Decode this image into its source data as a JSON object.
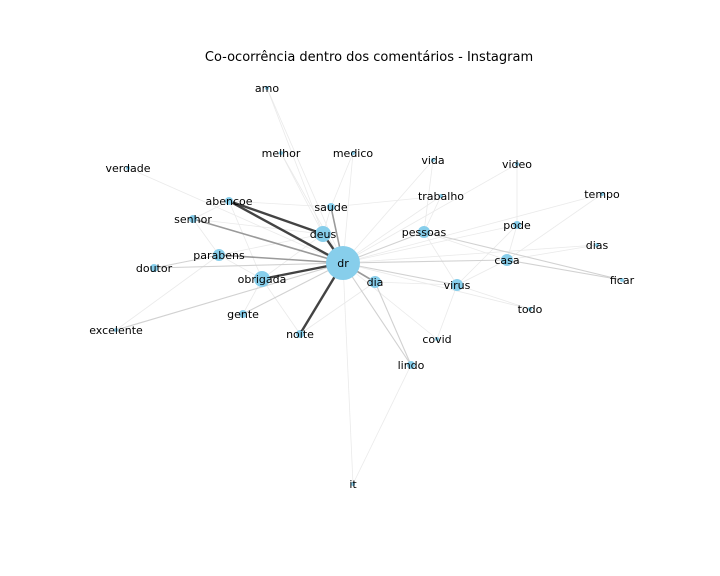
{
  "figure": {
    "title": "Co-ocorrência dentro dos comentários - Instagram"
  },
  "colors": {
    "node_fill": "#87ceeb",
    "edge_strong": "#222222",
    "edge_medium": "#888888",
    "edge_weak": "#cccccc",
    "edge_faint": "#e8e8e8"
  },
  "chart_data": {
    "type": "network",
    "hub": "dr",
    "nodes": [
      {
        "id": "dr",
        "degree_size": 5
      },
      {
        "id": "deus",
        "degree_size": 3
      },
      {
        "id": "obrigada",
        "degree_size": 3
      },
      {
        "id": "parabens",
        "degree_size": 2
      },
      {
        "id": "dia",
        "degree_size": 2
      },
      {
        "id": "casa",
        "degree_size": 2
      },
      {
        "id": "virus",
        "degree_size": 2
      },
      {
        "id": "pessoas",
        "degree_size": 2
      },
      {
        "id": "abencoe",
        "degree_size": 1
      },
      {
        "id": "saude",
        "degree_size": 1
      },
      {
        "id": "senhor",
        "degree_size": 1
      },
      {
        "id": "doutor",
        "degree_size": 1
      },
      {
        "id": "pode",
        "degree_size": 1
      },
      {
        "id": "gente",
        "degree_size": 1
      },
      {
        "id": "noite",
        "degree_size": 1
      },
      {
        "id": "lindo",
        "degree_size": 1
      },
      {
        "id": "amo",
        "degree_size": 0
      },
      {
        "id": "melhor",
        "degree_size": 0
      },
      {
        "id": "medico",
        "degree_size": 0
      },
      {
        "id": "vida",
        "degree_size": 0
      },
      {
        "id": "video",
        "degree_size": 0
      },
      {
        "id": "verdade",
        "degree_size": 0
      },
      {
        "id": "trabalho",
        "degree_size": 0
      },
      {
        "id": "tempo",
        "degree_size": 0
      },
      {
        "id": "dias",
        "degree_size": 0
      },
      {
        "id": "ficar",
        "degree_size": 0
      },
      {
        "id": "todo",
        "degree_size": 0
      },
      {
        "id": "covid",
        "degree_size": 0
      },
      {
        "id": "excelente",
        "degree_size": 0
      },
      {
        "id": "it",
        "degree_size": 0
      }
    ],
    "edges": [
      {
        "source": "dr",
        "target": "abencoe",
        "weight": 4
      },
      {
        "source": "dr",
        "target": "deus",
        "weight": 4
      },
      {
        "source": "dr",
        "target": "obrigada",
        "weight": 4
      },
      {
        "source": "dr",
        "target": "noite",
        "weight": 4
      },
      {
        "source": "abencoe",
        "target": "deus",
        "weight": 4
      },
      {
        "source": "dr",
        "target": "parabens",
        "weight": 3
      },
      {
        "source": "dr",
        "target": "dia",
        "weight": 3
      },
      {
        "source": "dr",
        "target": "senhor",
        "weight": 3
      },
      {
        "source": "dr",
        "target": "saude",
        "weight": 3
      },
      {
        "source": "dr",
        "target": "casa",
        "weight": 2
      },
      {
        "source": "dr",
        "target": "virus",
        "weight": 2
      },
      {
        "source": "dr",
        "target": "pessoas",
        "weight": 2
      },
      {
        "source": "dr",
        "target": "lindo",
        "weight": 2
      },
      {
        "source": "dr",
        "target": "doutor",
        "weight": 2
      },
      {
        "source": "dr",
        "target": "excelente",
        "weight": 2
      },
      {
        "source": "dr",
        "target": "gente",
        "weight": 2
      },
      {
        "source": "pessoas",
        "target": "ficar",
        "weight": 2
      },
      {
        "source": "casa",
        "target": "ficar",
        "weight": 2
      },
      {
        "source": "parabens",
        "target": "doutor",
        "weight": 2
      },
      {
        "source": "dia",
        "target": "lindo",
        "weight": 2
      },
      {
        "source": "dr",
        "target": "melhor",
        "weight": 1
      },
      {
        "source": "dr",
        "target": "medico",
        "weight": 1
      },
      {
        "source": "dr",
        "target": "vida",
        "weight": 1
      },
      {
        "source": "dr",
        "target": "video",
        "weight": 1
      },
      {
        "source": "dr",
        "target": "trabalho",
        "weight": 1
      },
      {
        "source": "dr",
        "target": "pode",
        "weight": 1
      },
      {
        "source": "dr",
        "target": "covid",
        "weight": 1
      },
      {
        "source": "dr",
        "target": "todo",
        "weight": 1
      },
      {
        "source": "dr",
        "target": "dias",
        "weight": 1
      },
      {
        "source": "dr",
        "target": "tempo",
        "weight": 1
      },
      {
        "source": "dr",
        "target": "it",
        "weight": 1
      },
      {
        "source": "dr",
        "target": "verdade",
        "weight": 1
      },
      {
        "source": "dr",
        "target": "amo",
        "weight": 1
      },
      {
        "source": "virus",
        "target": "casa",
        "weight": 1
      },
      {
        "source": "virus",
        "target": "covid",
        "weight": 1
      },
      {
        "source": "virus",
        "target": "todo",
        "weight": 1
      },
      {
        "source": "pessoas",
        "target": "casa",
        "weight": 1
      },
      {
        "source": "pessoas",
        "target": "virus",
        "weight": 1
      },
      {
        "source": "pode",
        "target": "casa",
        "weight": 1
      },
      {
        "source": "pode",
        "target": "virus",
        "weight": 1
      },
      {
        "source": "pode",
        "target": "video",
        "weight": 1
      },
      {
        "source": "casa",
        "target": "dias",
        "weight": 1
      },
      {
        "source": "casa",
        "target": "tempo",
        "weight": 1
      },
      {
        "source": "deus",
        "target": "obrigada",
        "weight": 1
      },
      {
        "source": "deus",
        "target": "parabens",
        "weight": 1
      },
      {
        "source": "deus",
        "target": "senhor",
        "weight": 1
      },
      {
        "source": "deus",
        "target": "saude",
        "weight": 1
      },
      {
        "source": "deus",
        "target": "melhor",
        "weight": 1
      },
      {
        "source": "deus",
        "target": "amo",
        "weight": 1
      },
      {
        "source": "abencoe",
        "target": "senhor",
        "weight": 1
      },
      {
        "source": "abencoe",
        "target": "saude",
        "weight": 1
      },
      {
        "source": "abencoe",
        "target": "obrigada",
        "weight": 1
      },
      {
        "source": "obrigada",
        "target": "parabens",
        "weight": 1
      },
      {
        "source": "obrigada",
        "target": "noite",
        "weight": 1
      },
      {
        "source": "obrigada",
        "target": "gente",
        "weight": 1
      },
      {
        "source": "parabens",
        "target": "senhor",
        "weight": 1
      },
      {
        "source": "parabens",
        "target": "excelente",
        "weight": 1
      },
      {
        "source": "saude",
        "target": "medico",
        "weight": 1
      },
      {
        "source": "saude",
        "target": "trabalho",
        "weight": 1
      },
      {
        "source": "trabalho",
        "target": "pessoas",
        "weight": 1
      },
      {
        "source": "vida",
        "target": "pessoas",
        "weight": 1
      },
      {
        "source": "dia",
        "target": "noite",
        "weight": 1
      },
      {
        "source": "dia",
        "target": "virus",
        "weight": 1
      },
      {
        "source": "lindo",
        "target": "it",
        "weight": 1
      }
    ]
  }
}
